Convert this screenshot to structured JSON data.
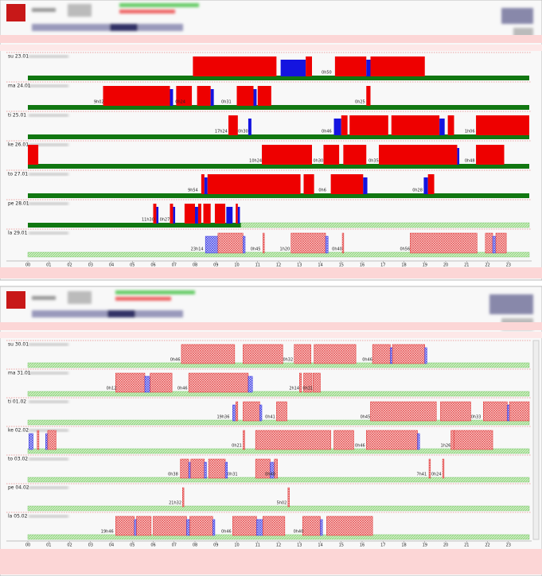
{
  "hours": [
    "00",
    "01",
    "02",
    "03",
    "04",
    "05",
    "06",
    "07",
    "08",
    "09",
    "10",
    "11",
    "12",
    "13",
    "14",
    "15",
    "16",
    "17",
    "18",
    "19",
    "20",
    "21",
    "22",
    "23"
  ],
  "panels": [
    {
      "rows": [
        {
          "label": "su 23.01",
          "mode": "actual",
          "blocks": [
            [
              7.9,
              11.9,
              "d"
            ],
            [
              12.1,
              13.3,
              "w"
            ],
            [
              13.3,
              13.6,
              "d"
            ],
            [
              14.7,
              16.2,
              "d"
            ],
            [
              16.2,
              16.4,
              "w"
            ],
            [
              16.4,
              19.0,
              "d"
            ]
          ],
          "notes": [
            {
              "at": 14.3,
              "text": "0h50"
            }
          ]
        },
        {
          "label": "ma 24.01",
          "mode": "actual",
          "blocks": [
            [
              3.6,
              6.8,
              "d"
            ],
            [
              6.8,
              6.95,
              "w"
            ],
            [
              7.1,
              7.85,
              "d"
            ],
            [
              8.1,
              8.75,
              "d"
            ],
            [
              8.75,
              8.9,
              "w"
            ],
            [
              10.0,
              10.8,
              "d"
            ],
            [
              10.8,
              10.95,
              "w"
            ],
            [
              11.0,
              11.65,
              "d"
            ],
            [
              16.2,
              16.4,
              "d"
            ]
          ],
          "notes": [
            {
              "at": 3.4,
              "text": "9h02"
            },
            {
              "at": 7.3,
              "text": "0h24"
            },
            {
              "at": 9.5,
              "text": "0h31"
            },
            {
              "at": 15.9,
              "text": "0h25"
            }
          ]
        },
        {
          "label": "ti 25.01",
          "mode": "actual",
          "blocks": [
            [
              9.6,
              10.05,
              "d"
            ],
            [
              10.55,
              10.7,
              "w"
            ],
            [
              14.65,
              15.0,
              "w"
            ],
            [
              15.0,
              15.3,
              "d"
            ],
            [
              15.4,
              17.25,
              "d"
            ],
            [
              17.4,
              19.7,
              "d"
            ],
            [
              19.7,
              19.95,
              "w"
            ],
            [
              20.1,
              20.4,
              "d"
            ],
            [
              21.45,
              24,
              "d"
            ]
          ],
          "notes": [
            {
              "at": 9.25,
              "text": "17h24"
            },
            {
              "at": 10.3,
              "text": "0h30"
            },
            {
              "at": 14.3,
              "text": "0h46"
            },
            {
              "at": 21.15,
              "text": "1h06"
            }
          ]
        },
        {
          "label": "ke 26.01",
          "mode": "actual",
          "blocks": [
            [
              0,
              0.5,
              "d"
            ],
            [
              11.2,
              13.6,
              "d"
            ],
            [
              14.15,
              14.9,
              "d"
            ],
            [
              15.1,
              16.2,
              "d"
            ],
            [
              16.8,
              20.55,
              "d"
            ],
            [
              20.55,
              20.65,
              "w"
            ],
            [
              21.45,
              22.8,
              "d"
            ]
          ],
          "notes": [
            {
              "at": 10.9,
              "text": "10h24"
            },
            {
              "at": 13.9,
              "text": "0h30"
            },
            {
              "at": 16.55,
              "text": "0h35"
            },
            {
              "at": 21.15,
              "text": "0h48"
            }
          ]
        },
        {
          "label": "to 27.01",
          "mode": "actual",
          "blocks": [
            [
              8.3,
              8.45,
              "d"
            ],
            [
              8.45,
              8.6,
              "w"
            ],
            [
              8.6,
              13.05,
              "d"
            ],
            [
              13.2,
              13.7,
              "d"
            ],
            [
              14.5,
              16.05,
              "d"
            ],
            [
              16.05,
              16.25,
              "w"
            ],
            [
              18.95,
              19.15,
              "w"
            ],
            [
              19.15,
              19.45,
              "d"
            ]
          ],
          "notes": [
            {
              "at": 7.9,
              "text": "9h54"
            },
            {
              "at": 14.1,
              "text": "0h6"
            },
            {
              "at": 18.65,
              "text": "0h28"
            }
          ]
        },
        {
          "label": "pe 28.01",
          "mode": "actual",
          "actual_end": 10.2,
          "blocks": [
            [
              6.0,
              6.15,
              "d"
            ],
            [
              6.15,
              6.25,
              "w"
            ],
            [
              6.8,
              6.95,
              "d"
            ],
            [
              6.95,
              7.05,
              "w"
            ],
            [
              7.5,
              8.0,
              "d"
            ],
            [
              8.0,
              8.15,
              "w"
            ],
            [
              8.15,
              8.3,
              "d"
            ],
            [
              8.4,
              8.75,
              "d"
            ],
            [
              8.95,
              9.45,
              "d"
            ],
            [
              9.5,
              9.8,
              "w"
            ],
            [
              9.95,
              10.05,
              "d"
            ],
            [
              10.05,
              10.15,
              "w"
            ]
          ],
          "notes": [
            {
              "at": 5.75,
              "text": "11h30"
            },
            {
              "at": 6.55,
              "text": "0h27"
            }
          ]
        },
        {
          "label": "la 29.01",
          "mode": "planned",
          "blocks": [
            [
              8.5,
              9.1,
              "w"
            ],
            [
              9.1,
              10.3,
              "d"
            ],
            [
              10.3,
              10.4,
              "w"
            ],
            [
              11.25,
              11.32,
              "d"
            ],
            [
              12.6,
              14.25,
              "d"
            ],
            [
              14.25,
              14.37,
              "w"
            ],
            [
              15.05,
              15.12,
              "d"
            ],
            [
              18.3,
              21.5,
              "d"
            ],
            [
              21.9,
              22.25,
              "d"
            ],
            [
              22.25,
              22.4,
              "w"
            ],
            [
              22.4,
              22.9,
              "d"
            ]
          ],
          "notes": [
            {
              "at": 8.1,
              "text": "23h14"
            },
            {
              "at": 10.9,
              "text": "0h45"
            },
            {
              "at": 12.3,
              "text": "1h20"
            },
            {
              "at": 14.8,
              "text": "0h40"
            },
            {
              "at": 18.05,
              "text": "0h56"
            }
          ]
        }
      ]
    },
    {
      "rows": [
        {
          "label": "su 30.01",
          "mode": "planned",
          "blocks": [
            [
              7.35,
              9.9,
              "d"
            ],
            [
              10.3,
              12.2,
              "d"
            ],
            [
              12.75,
              13.55,
              "d"
            ],
            [
              13.7,
              15.7,
              "d"
            ],
            [
              16.5,
              17.35,
              "d"
            ],
            [
              17.35,
              17.45,
              "w"
            ],
            [
              17.45,
              19.0,
              "d"
            ],
            [
              19.0,
              19.1,
              "w"
            ]
          ],
          "notes": [
            {
              "at": 7.05,
              "text": "0h46"
            },
            {
              "at": 12.45,
              "text": "0h32"
            },
            {
              "at": 16.25,
              "text": "0h46"
            }
          ]
        },
        {
          "label": "ma 31.01",
          "mode": "planned",
          "blocks": [
            [
              4.2,
              5.6,
              "d"
            ],
            [
              5.6,
              5.85,
              "w"
            ],
            [
              5.85,
              6.9,
              "d"
            ],
            [
              7.7,
              10.55,
              "d"
            ],
            [
              10.55,
              10.75,
              "w"
            ],
            [
              13.0,
              13.1,
              "d"
            ],
            [
              13.2,
              13.6,
              "d"
            ],
            [
              13.65,
              14.0,
              "d"
            ]
          ],
          "notes": [
            {
              "at": 4.0,
              "text": "0h12"
            },
            {
              "at": 7.4,
              "text": "0h46"
            },
            {
              "at": 12.75,
              "text": "2h14"
            },
            {
              "at": 13.4,
              "text": "0h31"
            }
          ]
        },
        {
          "label": "ti 01.02",
          "mode": "planned",
          "blocks": [
            [
              9.8,
              9.95,
              "w"
            ],
            [
              9.95,
              10.05,
              "d"
            ],
            [
              10.3,
              11.1,
              "d"
            ],
            [
              11.1,
              11.2,
              "w"
            ],
            [
              11.9,
              12.4,
              "d"
            ],
            [
              16.4,
              19.55,
              "d"
            ],
            [
              19.75,
              21.2,
              "d"
            ],
            [
              21.8,
              22.95,
              "d"
            ],
            [
              22.95,
              23.05,
              "w"
            ],
            [
              23.05,
              24,
              "d"
            ]
          ],
          "notes": [
            {
              "at": 9.35,
              "text": "19h36"
            },
            {
              "at": 11.6,
              "text": "0h41"
            },
            {
              "at": 16.15,
              "text": "0h45"
            },
            {
              "at": 21.45,
              "text": "0h33"
            }
          ]
        },
        {
          "label": "ke 02.02",
          "mode": "planned",
          "blocks": [
            [
              0.05,
              0.25,
              "w"
            ],
            [
              0.45,
              0.53,
              "d"
            ],
            [
              0.85,
              0.95,
              "w"
            ],
            [
              0.95,
              1.35,
              "d"
            ],
            [
              10.3,
              10.38,
              "d"
            ],
            [
              10.9,
              14.5,
              "d"
            ],
            [
              14.65,
              15.6,
              "d"
            ],
            [
              16.2,
              18.65,
              "d"
            ],
            [
              18.65,
              18.75,
              "w"
            ],
            [
              20.25,
              20.4,
              "d"
            ],
            [
              20.4,
              22.25,
              "d"
            ]
          ],
          "notes": [
            {
              "at": 10.0,
              "text": "0h21"
            },
            {
              "at": 15.9,
              "text": "0h46"
            },
            {
              "at": 20.0,
              "text": "1h26"
            }
          ]
        },
        {
          "label": "to 03.02",
          "mode": "planned",
          "blocks": [
            [
              7.3,
              7.7,
              "d"
            ],
            [
              7.7,
              7.8,
              "w"
            ],
            [
              7.8,
              8.45,
              "d"
            ],
            [
              8.45,
              8.55,
              "w"
            ],
            [
              8.65,
              9.45,
              "d"
            ],
            [
              9.45,
              9.55,
              "w"
            ],
            [
              10.9,
              11.6,
              "d"
            ],
            [
              11.6,
              11.8,
              "w"
            ],
            [
              11.8,
              11.95,
              "d"
            ],
            [
              19.2,
              19.27,
              "d"
            ],
            [
              19.85,
              19.92,
              "d"
            ]
          ],
          "notes": [
            {
              "at": 6.95,
              "text": "0h38"
            },
            {
              "at": 9.8,
              "text": "0h31"
            },
            {
              "at": 11.6,
              "text": "0h40"
            },
            {
              "at": 18.85,
              "text": "7h41"
            },
            {
              "at": 19.55,
              "text": "0h24"
            }
          ]
        },
        {
          "label": "pe 04.02",
          "mode": "planned",
          "blocks": [
            [
              7.4,
              7.47,
              "d"
            ],
            [
              12.45,
              12.52,
              "d"
            ]
          ],
          "notes": [
            {
              "at": 7.05,
              "text": "21h32"
            },
            {
              "at": 12.15,
              "text": "5h02"
            }
          ]
        },
        {
          "label": "la 05.02",
          "mode": "planned",
          "blocks": [
            [
              4.2,
              5.1,
              "d"
            ],
            [
              5.1,
              5.2,
              "w"
            ],
            [
              5.2,
              5.9,
              "d"
            ],
            [
              6.0,
              7.6,
              "d"
            ],
            [
              7.6,
              7.75,
              "w"
            ],
            [
              7.75,
              8.85,
              "d"
            ],
            [
              8.85,
              8.95,
              "w"
            ],
            [
              9.8,
              10.95,
              "d"
            ],
            [
              10.95,
              11.25,
              "w"
            ],
            [
              11.25,
              12.3,
              "d"
            ],
            [
              13.15,
              14.0,
              "d"
            ],
            [
              14.0,
              14.1,
              "w"
            ],
            [
              14.3,
              16.5,
              "d"
            ]
          ],
          "notes": [
            {
              "at": 3.8,
              "text": "19h46"
            },
            {
              "at": 9.5,
              "text": "0h46"
            },
            {
              "at": 12.95,
              "text": "0h40"
            }
          ]
        }
      ]
    }
  ]
}
